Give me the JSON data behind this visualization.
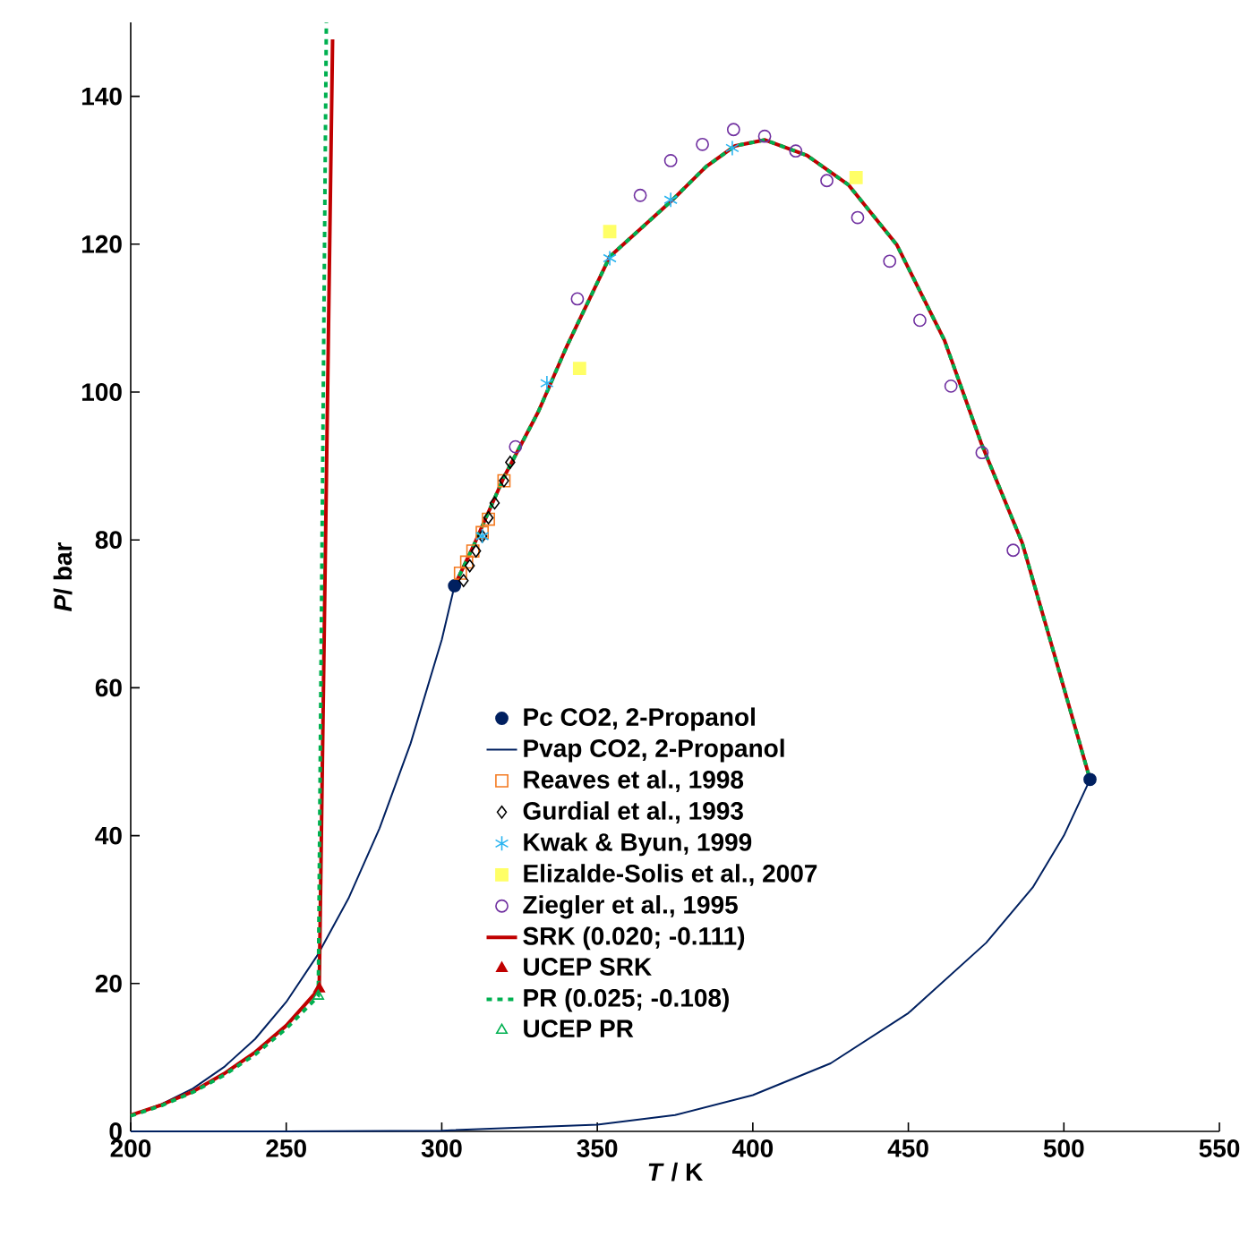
{
  "chart_data": {
    "type": "scatter",
    "xlabel": "*T* / K",
    "ylabel": "*P*/ bar",
    "xlim": [
      200,
      550
    ],
    "ylim": [
      0,
      150
    ],
    "xticks": [
      200,
      250,
      300,
      350,
      400,
      450,
      500,
      550
    ],
    "yticks": [
      0,
      20,
      40,
      60,
      80,
      100,
      120,
      140
    ],
    "grid": false,
    "legend": "bottom",
    "series": [
      {
        "name": "Pc CO2, 2-Propanol",
        "marker": "circle",
        "color": "#002060",
        "x": [
          304.1,
          508.4
        ],
        "values": [
          73.8,
          47.6
        ]
      },
      {
        "name": "Pvap CO2, 2-Propanol",
        "type": "line",
        "marker": "none",
        "line_style": "solid",
        "color": "#002060",
        "x": [
          200,
          210,
          220,
          230,
          240,
          250,
          260,
          270,
          280,
          290,
          300,
          304.1,
          null,
          200,
          250,
          300,
          350,
          375,
          400,
          425,
          450,
          475,
          490,
          500,
          508.4
        ],
        "values": [
          2.2,
          3.7,
          5.8,
          8.7,
          12.5,
          17.5,
          23.8,
          31.5,
          41.0,
          52.5,
          66.5,
          73.8,
          null,
          0,
          0,
          0.1,
          0.9,
          2.2,
          4.9,
          9.2,
          16,
          25.5,
          33,
          40,
          47.6
        ]
      },
      {
        "name": "Reaves et al., 1998",
        "marker": "square",
        "color": "#f47a20",
        "x": [
          306,
          308,
          310,
          313,
          315,
          320
        ],
        "values": [
          75.5,
          77,
          78.5,
          81,
          82.8,
          88
        ]
      },
      {
        "name": "Gurdial et al., 1993",
        "marker": "diamond",
        "color": "#000000",
        "x": [
          307,
          309,
          311,
          313,
          315,
          317,
          320,
          322
        ],
        "values": [
          74.5,
          76.5,
          78.5,
          80.5,
          83,
          85,
          88,
          90.5
        ]
      },
      {
        "name": "Kwak & Byun, 1999",
        "marker": "cross",
        "color": "#2ab4f0",
        "x": [
          313,
          333.8,
          354,
          373.6,
          393.4
        ],
        "values": [
          80.5,
          101.2,
          118.1,
          126,
          133
        ]
      },
      {
        "name": "Elizalde-Solis et al., 2007",
        "marker": "square",
        "color": "#ffff66",
        "x": [
          344.3,
          354,
          433.2
        ],
        "values": [
          103.2,
          121.7,
          129
        ]
      },
      {
        "name": "Ziegler et al., 1995",
        "marker": "circle",
        "color": "#7030a0",
        "x": [
          323.7,
          343.6,
          363.8,
          373.6,
          383.8,
          393.8,
          403.8,
          413.8,
          423.8,
          433.7,
          444,
          453.7,
          463.7,
          473.7,
          483.7
        ],
        "values": [
          92.6,
          112.6,
          126.6,
          131.3,
          133.5,
          135.5,
          134.6,
          132.6,
          128.6,
          123.6,
          117.7,
          109.7,
          100.8,
          91.8,
          78.6
        ]
      },
      {
        "name": "SRK (0.020; -0.111)",
        "type": "line",
        "marker": "none",
        "line_style": "solid",
        "color": "#c00000",
        "x": [
          200,
          210,
          220,
          230,
          240,
          250,
          260.6,
          264.9,
          null,
          304.1,
          310,
          320,
          331,
          340,
          354,
          374.2,
          385,
          394.3,
          403.9,
          417.4,
          430.8,
          446.3,
          461.6,
          473.5,
          486.6,
          497,
          508.4
        ],
        "values": [
          2.2,
          3.6,
          5.4,
          7.8,
          10.7,
          14.3,
          19.3,
          147.7,
          null,
          73.8,
          79,
          88.5,
          97.3,
          106,
          118.3,
          126,
          130.5,
          133.3,
          134.1,
          132,
          128,
          119.9,
          107,
          93,
          79.6,
          64.4,
          47.6
        ]
      },
      {
        "name": "UCEP SRK",
        "marker": "triangle",
        "color": "#c00000",
        "x": [
          260.6
        ],
        "values": [
          19.3
        ]
      },
      {
        "name": "PR (0.025; -0.108)",
        "type": "line",
        "marker": "none",
        "line_style": "dashed",
        "color": "#00b050",
        "x": [
          200,
          210,
          220,
          230,
          240,
          250,
          260.3,
          262.9,
          null,
          304.1,
          310,
          320,
          331,
          340,
          354,
          374.2,
          385,
          394.3,
          403.9,
          417.4,
          430.8,
          446.3,
          461.6,
          473.5,
          486.6,
          497,
          508.4
        ],
        "values": [
          2.1,
          3.5,
          5.3,
          7.6,
          10.4,
          13.9,
          18.3,
          150,
          null,
          73.8,
          79,
          88.5,
          97.3,
          106,
          118.3,
          126,
          130.5,
          133.3,
          134.1,
          132,
          128,
          119.9,
          107,
          93,
          79.6,
          64.4,
          47.6
        ]
      },
      {
        "name": "UCEP PR",
        "marker": "triangle",
        "color": "#00b050",
        "x": [
          260.3
        ],
        "values": [
          18.3
        ]
      }
    ]
  }
}
